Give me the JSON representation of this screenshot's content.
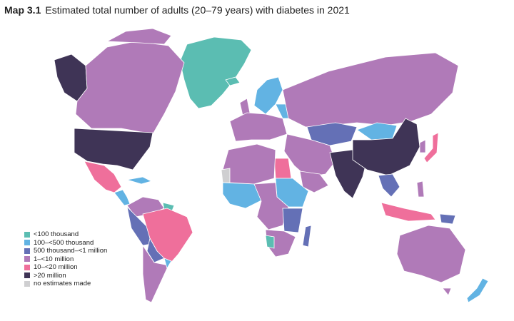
{
  "title": {
    "label": "Map 3.1",
    "text": "Estimated total number of adults (20–79 years) with diabetes in 2021"
  },
  "colors": {
    "ocean": "#ffffff",
    "border": "#ffffff",
    "lt100k": "#5bbdb2",
    "k100_500": "#62b3e3",
    "k500_1m": "#6470b6",
    "m1_10": "#b07ab8",
    "m10_20": "#ef6f9b",
    "gt20m": "#3f3456",
    "none": "#cfcfd1"
  },
  "legend": [
    {
      "label": "<100 thousand",
      "color": "#5bbdb2"
    },
    {
      "label": "100–<500 thousand",
      "color": "#62b3e3"
    },
    {
      "label": "500 thousand–<1 million",
      "color": "#6470b6"
    },
    {
      "label": "1–<10 million",
      "color": "#b07ab8"
    },
    {
      "label": "10–<20 million",
      "color": "#ef6f9b"
    },
    {
      "label": ">20 million",
      "color": "#3f3456"
    },
    {
      "label": "no estimates made",
      "color": "#cfcfd1"
    }
  ]
}
